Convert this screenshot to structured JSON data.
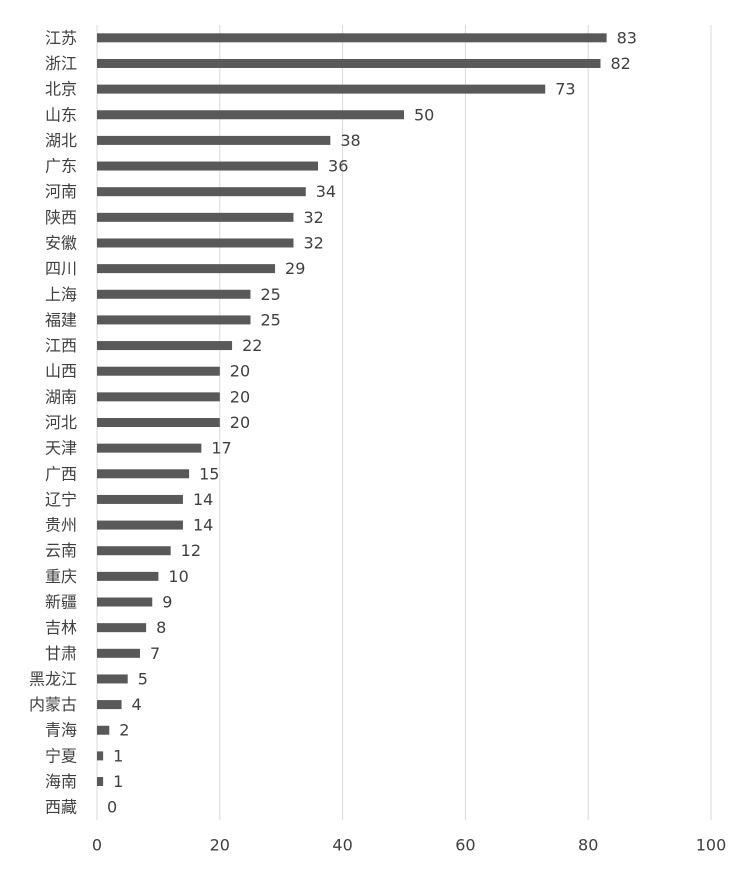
{
  "chart_data": {
    "type": "bar",
    "categories": [
      "江苏",
      "浙江",
      "北京",
      "山东",
      "湖北",
      "广东",
      "河南",
      "陕西",
      "安徽",
      "四川",
      "上海",
      "福建",
      "江西",
      "山西",
      "湖南",
      "河北",
      "天津",
      "广西",
      "辽宁",
      "贵州",
      "云南",
      "重庆",
      "新疆",
      "吉林",
      "甘肃",
      "黑龙江",
      "内蒙古",
      "青海",
      "宁夏",
      "海南",
      "西藏"
    ],
    "values": [
      83,
      82,
      73,
      50,
      38,
      36,
      34,
      32,
      32,
      29,
      25,
      25,
      22,
      20,
      20,
      20,
      17,
      15,
      14,
      14,
      12,
      10,
      9,
      8,
      7,
      5,
      4,
      2,
      1,
      1,
      0
    ],
    "color": "#595959",
    "xlim": [
      0,
      100
    ],
    "xticks": [
      0,
      20,
      40,
      60,
      80,
      100
    ],
    "grid": true
  }
}
